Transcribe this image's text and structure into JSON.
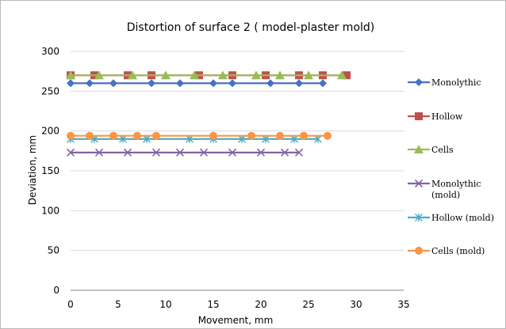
{
  "chart_data": {
    "type": "line",
    "title": "Distortion of surface 2 ( model-plaster mold)",
    "xlabel": "Movement, mm",
    "ylabel": "Deviation, mm",
    "xlim": [
      0,
      35
    ],
    "ylim": [
      0,
      300
    ],
    "xticks": [
      0,
      5,
      10,
      15,
      20,
      25,
      30,
      35
    ],
    "yticks": [
      0,
      50,
      100,
      150,
      200,
      250,
      300
    ],
    "grid": "horizontal",
    "legend_position": "right",
    "series": [
      {
        "name": "Monolythic",
        "label_lines": [
          "Monolythic"
        ],
        "color": "#4472C4",
        "marker": "diamond",
        "x": [
          0,
          2,
          4.5,
          8.5,
          11.5,
          15,
          17,
          21,
          24,
          26.5
        ],
        "y": [
          260,
          260,
          260,
          260,
          260,
          260,
          260,
          260,
          260,
          260
        ]
      },
      {
        "name": "Hollow",
        "label_lines": [
          "Hollow"
        ],
        "color": "#C0504D",
        "marker": "square",
        "x": [
          0,
          2.5,
          6,
          8.5,
          13.5,
          17,
          20.5,
          24,
          26.5,
          29
        ],
        "y": [
          270,
          270,
          270,
          270,
          270,
          270,
          270,
          270,
          270,
          270
        ]
      },
      {
        "name": "Cells",
        "label_lines": [
          "Cells"
        ],
        "color": "#9BBB59",
        "marker": "triangle",
        "x": [
          0,
          3,
          6.5,
          10,
          13,
          16,
          19.5,
          22,
          25,
          28.5
        ],
        "y": [
          270,
          270,
          270,
          270,
          270,
          270,
          270,
          270,
          270,
          270
        ]
      },
      {
        "name": "Monolythic (mold)",
        "label_lines": [
          "Monolythic",
          "(mold)"
        ],
        "color": "#8064A2",
        "marker": "x",
        "x": [
          0,
          3,
          6,
          9,
          11.5,
          14,
          17,
          20,
          22.5,
          24
        ],
        "y": [
          173,
          173,
          173,
          173,
          173,
          173,
          173,
          173,
          173,
          173
        ]
      },
      {
        "name": "Hollow (mold)",
        "label_lines": [
          "Hollow (mold)"
        ],
        "color": "#4BACC6",
        "marker": "star",
        "x": [
          0,
          2.5,
          5.5,
          8,
          12.5,
          15,
          18,
          20.5,
          23.5,
          26
        ],
        "y": [
          190,
          190,
          190,
          190,
          190,
          190,
          190,
          190,
          190,
          190
        ]
      },
      {
        "name": "Cells (mold)",
        "label_lines": [
          "Cells (mold)"
        ],
        "color": "#F79646",
        "marker": "circle",
        "x": [
          0,
          2,
          4.5,
          7,
          9,
          15,
          19,
          22,
          24.5,
          27
        ],
        "y": [
          194,
          194,
          194,
          194,
          194,
          194,
          194,
          194,
          194,
          194
        ]
      }
    ]
  }
}
